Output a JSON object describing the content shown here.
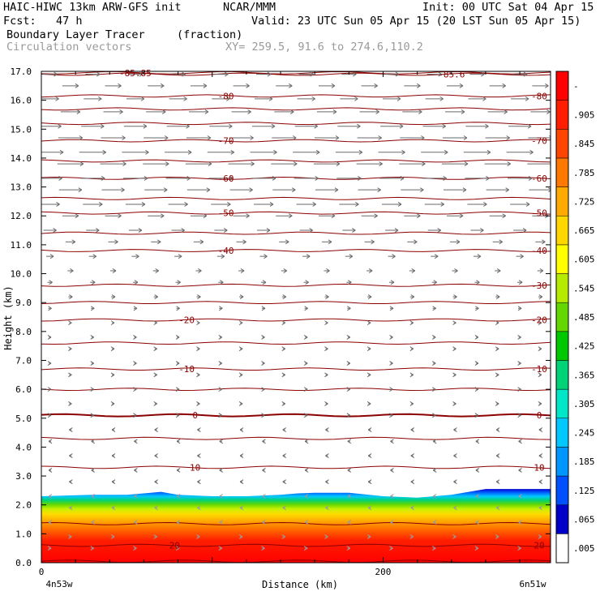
{
  "header": {
    "title_left": "HAIC-HIWC 13km ARW-GFS init",
    "title_mid": "NCAR/MMM",
    "init": "Init: 00 UTC Sat 04 Apr 15",
    "fcst": "Fcst:   47 h",
    "valid": "Valid: 23 UTC Sun 05 Apr 15 (20 LST Sun 05 Apr 15)",
    "field1": "Boundary Layer Tracer",
    "field1_units": "(fraction)",
    "field2": "Circulation vectors",
    "xy": "XY= 259.5, 91.6 to 274.6,110.2"
  },
  "chart_data": {
    "type": "heatmap",
    "xlabel": "Distance (km)",
    "ylabel": "Height (km)",
    "xlim": [
      0,
      298
    ],
    "ylim": [
      0,
      17
    ],
    "x_ticks": [
      {
        "v": 0,
        "label": "0"
      },
      {
        "v": 200,
        "label": "200"
      }
    ],
    "x_end_labels": {
      "left": "4n53w",
      "right": "6n51w"
    },
    "y_ticks": [
      "0.0",
      "1.0",
      "2.0",
      "3.0",
      "4.0",
      "5.0",
      "6.0",
      "7.0",
      "8.0",
      "9.0",
      "10.0",
      "11.0",
      "12.0",
      "13.0",
      "14.0",
      "15.0",
      "16.0",
      "17.0"
    ],
    "colorbar": {
      "labels": [
        ".005",
        ".065",
        ".125",
        ".185",
        ".245",
        ".305",
        ".365",
        ".425",
        ".485",
        ".545",
        ".605",
        ".665",
        ".725",
        ".785",
        ".845",
        ".905",
        "-"
      ],
      "colors": [
        "#ffffff",
        "#0000c8",
        "#0050ff",
        "#0096ff",
        "#00c8ff",
        "#00e6c8",
        "#00d278",
        "#00c800",
        "#64d700",
        "#b4eb00",
        "#ffff00",
        "#ffd700",
        "#ffaa00",
        "#ff7800",
        "#ff4600",
        "#ff1e00",
        "#ff0000"
      ]
    },
    "tracer_field": {
      "description_x_km": [
        0,
        30,
        50,
        60,
        70,
        80,
        100,
        120,
        140,
        150,
        160,
        180,
        200,
        220,
        240,
        260,
        280,
        298
      ],
      "pbl_top_km": [
        2.3,
        2.35,
        2.35,
        2.4,
        2.45,
        2.35,
        2.3,
        2.3,
        2.35,
        2.4,
        2.42,
        2.42,
        2.3,
        2.25,
        2.35,
        2.55,
        2.55,
        2.55
      ]
    },
    "temperature_contours": [
      {
        "label": "-85.6",
        "height_km": 16.9,
        "labels_at_km": [
          240
        ]
      },
      {
        "label": "-85.85",
        "height_km": 16.95,
        "labels_at_km": [
          55
        ]
      },
      {
        "label": "-80",
        "height_km": 16.15,
        "labels_at_km": [
          108,
          302
        ]
      },
      {
        "label": "-70",
        "height_km": 14.6,
        "labels_at_km": [
          108,
          302
        ]
      },
      {
        "label": "-60",
        "height_km": 13.3,
        "labels_at_km": [
          108,
          302
        ]
      },
      {
        "label": "-50",
        "height_km": 12.1,
        "labels_at_km": [
          108,
          302
        ]
      },
      {
        "label": "-40",
        "height_km": 10.8,
        "labels_at_km": [
          108,
          302
        ]
      },
      {
        "label": "-30",
        "height_km": 9.6,
        "labels_at_km": [
          302
        ]
      },
      {
        "label": "-20",
        "height_km": 8.4,
        "labels_at_km": [
          85,
          302
        ]
      },
      {
        "label": "-10",
        "height_km": 6.7,
        "labels_at_km": [
          85,
          302
        ]
      },
      {
        "label": "0",
        "height_km": 5.1,
        "labels_at_km": [
          90,
          302
        ]
      },
      {
        "label": "10",
        "height_km": 3.3,
        "labels_at_km": [
          90,
          302
        ]
      },
      {
        "label": "20",
        "height_km": 0.6,
        "labels_at_km": [
          78,
          302
        ]
      }
    ],
    "extra_contour_heights_km": [
      0.05,
      1.35,
      4.3,
      6.0,
      7.6,
      9.0,
      11.4,
      12.6,
      13.9,
      15.2,
      15.7
    ],
    "wind_vectors_rows_km": [
      16.9,
      16.5,
      16.05,
      15.6,
      15.1,
      14.7,
      14.2,
      13.8,
      13.3,
      12.9,
      12.4,
      12.0,
      11.5,
      11.1,
      10.6,
      10.1,
      9.7,
      9.2,
      8.8,
      8.3,
      7.8,
      7.4,
      6.9,
      6.5,
      6.0,
      5.5,
      5.1,
      4.6,
      4.2,
      3.7,
      3.2,
      2.8,
      2.3,
      1.9,
      1.4,
      0.9,
      0.5
    ],
    "wind_vectors_u_by_row": [
      18,
      20,
      22,
      24,
      28,
      30,
      33,
      32,
      30,
      28,
      24,
      20,
      16,
      12,
      9,
      7,
      6,
      5,
      4,
      3,
      2,
      2,
      1,
      1,
      1,
      1,
      1,
      -1,
      -1,
      -2,
      -3,
      -3,
      -2,
      -1,
      -1,
      0,
      0
    ],
    "wind_vectors_x_km": [
      5,
      30,
      55,
      80,
      105,
      130,
      155,
      180,
      205,
      230,
      255,
      280
    ]
  }
}
